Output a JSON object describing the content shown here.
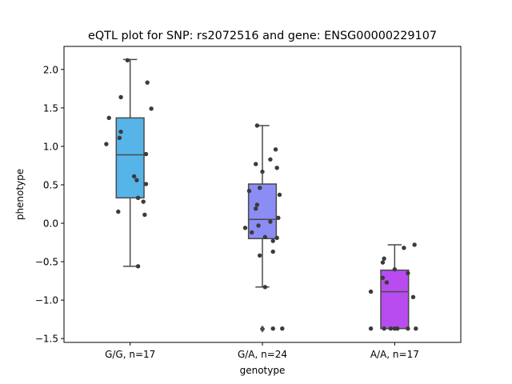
{
  "chart_data": {
    "type": "box",
    "title": "eQTL plot for SNP: rs2072516 and gene: ENSG00000229107",
    "xlabel": "genotype",
    "ylabel": "phenotype",
    "ylim": [
      -1.55,
      2.3
    ],
    "yticks": [
      2.0,
      1.5,
      1.0,
      0.5,
      0.0,
      -0.5,
      -1.0,
      -1.5
    ],
    "ytick_labels": [
      "2.0",
      "1.5",
      "1.0",
      "0.5",
      "0.0",
      "−0.5",
      "−1.0",
      "−1.5"
    ],
    "grid": false,
    "categories": [
      "G/G, n=17",
      "G/A, n=24",
      "A/A, n=17"
    ],
    "colors": [
      "#56b4e9",
      "#8c8cf5",
      "#b84cf0"
    ],
    "boxes": [
      {
        "q1": 0.33,
        "median": 0.89,
        "q3": 1.37,
        "whislo": -0.56,
        "whishi": 2.13,
        "fliers": []
      },
      {
        "q1": -0.2,
        "median": 0.05,
        "q3": 0.51,
        "whislo": -0.83,
        "whishi": 1.27,
        "fliers": [
          -1.37,
          -1.38
        ]
      },
      {
        "q1": -1.37,
        "median": -0.89,
        "q3": -0.61,
        "whislo": -1.37,
        "whishi": -0.28,
        "fliers": []
      }
    ],
    "points": [
      {
        "group": 0,
        "jitter": -0.02,
        "y": 2.12
      },
      {
        "group": 0,
        "jitter": 0.13,
        "y": 1.83
      },
      {
        "group": 0,
        "jitter": -0.07,
        "y": 1.64
      },
      {
        "group": 0,
        "jitter": 0.16,
        "y": 1.49
      },
      {
        "group": 0,
        "jitter": -0.16,
        "y": 1.37
      },
      {
        "group": 0,
        "jitter": -0.07,
        "y": 1.19
      },
      {
        "group": 0,
        "jitter": -0.08,
        "y": 1.11
      },
      {
        "group": 0,
        "jitter": -0.18,
        "y": 1.03
      },
      {
        "group": 0,
        "jitter": 0.12,
        "y": 0.9
      },
      {
        "group": 0,
        "jitter": 0.03,
        "y": 0.61
      },
      {
        "group": 0,
        "jitter": 0.05,
        "y": 0.56
      },
      {
        "group": 0,
        "jitter": 0.12,
        "y": 0.51
      },
      {
        "group": 0,
        "jitter": 0.06,
        "y": 0.33
      },
      {
        "group": 0,
        "jitter": 0.1,
        "y": 0.28
      },
      {
        "group": 0,
        "jitter": -0.09,
        "y": 0.15
      },
      {
        "group": 0,
        "jitter": 0.11,
        "y": 0.11
      },
      {
        "group": 0,
        "jitter": 0.06,
        "y": -0.56
      },
      {
        "group": 1,
        "jitter": -0.04,
        "y": 1.27
      },
      {
        "group": 1,
        "jitter": 0.1,
        "y": 0.96
      },
      {
        "group": 1,
        "jitter": 0.06,
        "y": 0.83
      },
      {
        "group": 1,
        "jitter": -0.05,
        "y": 0.77
      },
      {
        "group": 1,
        "jitter": 0.11,
        "y": 0.72
      },
      {
        "group": 1,
        "jitter": 0.0,
        "y": 0.67
      },
      {
        "group": 1,
        "jitter": -0.02,
        "y": 0.46
      },
      {
        "group": 1,
        "jitter": -0.1,
        "y": 0.42
      },
      {
        "group": 1,
        "jitter": 0.13,
        "y": 0.37
      },
      {
        "group": 1,
        "jitter": -0.04,
        "y": 0.24
      },
      {
        "group": 1,
        "jitter": -0.05,
        "y": 0.19
      },
      {
        "group": 1,
        "jitter": 0.12,
        "y": 0.07
      },
      {
        "group": 1,
        "jitter": 0.06,
        "y": 0.02
      },
      {
        "group": 1,
        "jitter": -0.03,
        "y": -0.03
      },
      {
        "group": 1,
        "jitter": -0.13,
        "y": -0.06
      },
      {
        "group": 1,
        "jitter": -0.08,
        "y": -0.12
      },
      {
        "group": 1,
        "jitter": 0.02,
        "y": -0.18
      },
      {
        "group": 1,
        "jitter": 0.11,
        "y": -0.19
      },
      {
        "group": 1,
        "jitter": 0.08,
        "y": -0.23
      },
      {
        "group": 1,
        "jitter": 0.08,
        "y": -0.37
      },
      {
        "group": 1,
        "jitter": -0.02,
        "y": -0.42
      },
      {
        "group": 1,
        "jitter": 0.02,
        "y": -0.83
      },
      {
        "group": 1,
        "jitter": 0.08,
        "y": -1.37
      },
      {
        "group": 1,
        "jitter": 0.15,
        "y": -1.37
      },
      {
        "group": 2,
        "jitter": 0.15,
        "y": -0.28
      },
      {
        "group": 2,
        "jitter": 0.07,
        "y": -0.32
      },
      {
        "group": 2,
        "jitter": -0.08,
        "y": -0.46
      },
      {
        "group": 2,
        "jitter": -0.09,
        "y": -0.51
      },
      {
        "group": 2,
        "jitter": 0.0,
        "y": -0.6
      },
      {
        "group": 2,
        "jitter": 0.1,
        "y": -0.65
      },
      {
        "group": 2,
        "jitter": -0.09,
        "y": -0.71
      },
      {
        "group": 2,
        "jitter": -0.06,
        "y": -0.77
      },
      {
        "group": 2,
        "jitter": -0.18,
        "y": -0.89
      },
      {
        "group": 2,
        "jitter": 0.14,
        "y": -0.96
      },
      {
        "group": 2,
        "jitter": -0.18,
        "y": -1.37
      },
      {
        "group": 2,
        "jitter": -0.08,
        "y": -1.37
      },
      {
        "group": 2,
        "jitter": -0.03,
        "y": -1.37
      },
      {
        "group": 2,
        "jitter": 0.0,
        "y": -1.37
      },
      {
        "group": 2,
        "jitter": 0.02,
        "y": -1.37
      },
      {
        "group": 2,
        "jitter": 0.1,
        "y": -1.37
      },
      {
        "group": 2,
        "jitter": 0.16,
        "y": -1.37
      }
    ],
    "point_color": "#3b3b3b",
    "box_line_color": "#4a4a4a"
  }
}
